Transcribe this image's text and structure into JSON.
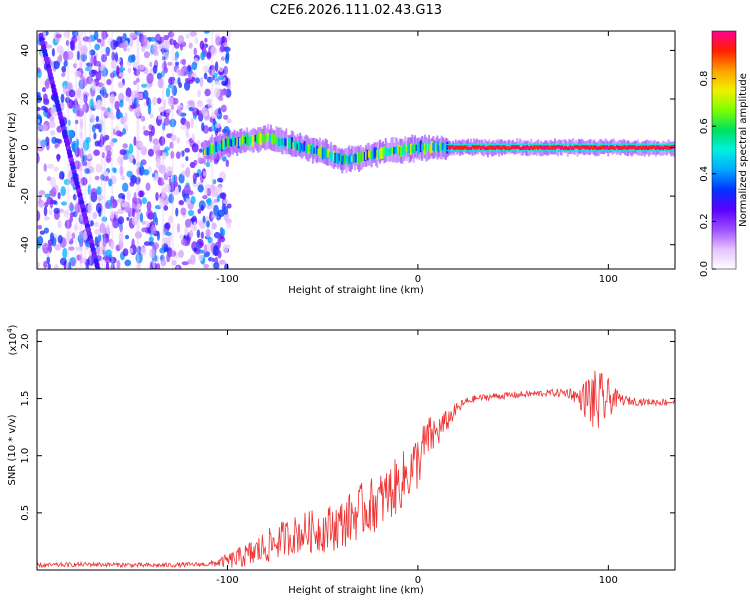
{
  "title": "C2E6.2026.111.02.43.G13",
  "chart_data": [
    {
      "type": "heatmap",
      "name": "spectrogram",
      "xlabel": "Height of straight line (km)",
      "ylabel": "Frequency (Hz)",
      "xlim": [
        -200,
        135
      ],
      "ylim": [
        -50,
        48
      ],
      "xticks": [
        -100,
        0,
        100
      ],
      "xtick_labels": [
        "-100",
        "0",
        "100"
      ],
      "yticks": [
        40,
        20,
        0,
        -20,
        -40
      ],
      "ytick_labels": [
        "40",
        "20",
        "0",
        "-20",
        "-40"
      ],
      "noise_region_x": [
        -200,
        -105
      ],
      "satellite_track": {
        "x_start": -198,
        "f_start": 46,
        "x_end": -168,
        "f_end": -50
      },
      "signal_band": {
        "x": [
          -113,
          -100,
          -90,
          -80,
          -70,
          -60,
          -50,
          -40,
          -30,
          -20,
          -10,
          0,
          10,
          20,
          60,
          100,
          135
        ],
        "f": [
          -2,
          2,
          3,
          4,
          2,
          0,
          -2,
          -5,
          -4,
          -2,
          -1,
          0,
          0,
          0,
          0,
          0,
          0
        ]
      },
      "colorbar": {
        "label": "Normalized spectral amplitude",
        "range": [
          0,
          1
        ],
        "ticks": [
          0.0,
          0.2,
          0.4,
          0.6,
          0.8
        ],
        "tick_labels": [
          "0.0",
          "0.2",
          "0.4",
          "0.6",
          "0.8"
        ],
        "colors": [
          "#ffffff",
          "#e4c2ff",
          "#9d4dff",
          "#5a00ff",
          "#0033ff",
          "#00a8ff",
          "#00f0e0",
          "#00e060",
          "#7cff00",
          "#f0f000",
          "#ffa000",
          "#ff2000",
          "#ff0090"
        ]
      }
    },
    {
      "type": "line",
      "name": "snr",
      "xlabel": "Height of straight line (km)",
      "ylabel": "SNR (10 * v/v)",
      "y_multiplier": "(x10",
      "y_multiplier_exp": "4",
      "multiplier_close": ")",
      "xlim": [
        -200,
        135
      ],
      "ylim": [
        0,
        2.1
      ],
      "xticks": [
        -100,
        0,
        100
      ],
      "xtick_labels": [
        "-100",
        "0",
        "100"
      ],
      "yticks": [
        2.0,
        1.5,
        1.0,
        0.5
      ],
      "ytick_labels": [
        "2.0",
        "1.5",
        "1.0",
        "0.5"
      ],
      "color": "#ee3333",
      "series": {
        "x": [
          -200,
          -170,
          -140,
          -110,
          -100,
          -90,
          -80,
          -70,
          -60,
          -50,
          -40,
          -30,
          -20,
          -10,
          0,
          5,
          10,
          15,
          20,
          25,
          30,
          40,
          50,
          60,
          70,
          80,
          85,
          90,
          95,
          100,
          105,
          110,
          120,
          135
        ],
        "y": [
          0.04,
          0.05,
          0.04,
          0.05,
          0.08,
          0.12,
          0.2,
          0.28,
          0.33,
          0.35,
          0.4,
          0.52,
          0.6,
          0.75,
          0.95,
          1.15,
          1.2,
          1.3,
          1.4,
          1.47,
          1.5,
          1.52,
          1.53,
          1.54,
          1.55,
          1.55,
          1.5,
          1.5,
          1.45,
          1.5,
          1.5,
          1.48,
          1.47,
          1.47
        ],
        "noise": [
          0.02,
          0.02,
          0.02,
          0.02,
          0.06,
          0.12,
          0.15,
          0.16,
          0.18,
          0.2,
          0.22,
          0.24,
          0.25,
          0.25,
          0.25,
          0.2,
          0.15,
          0.1,
          0.06,
          0.04,
          0.03,
          0.03,
          0.03,
          0.03,
          0.03,
          0.05,
          0.08,
          0.25,
          0.3,
          0.18,
          0.06,
          0.04,
          0.03,
          0.03
        ]
      }
    }
  ]
}
